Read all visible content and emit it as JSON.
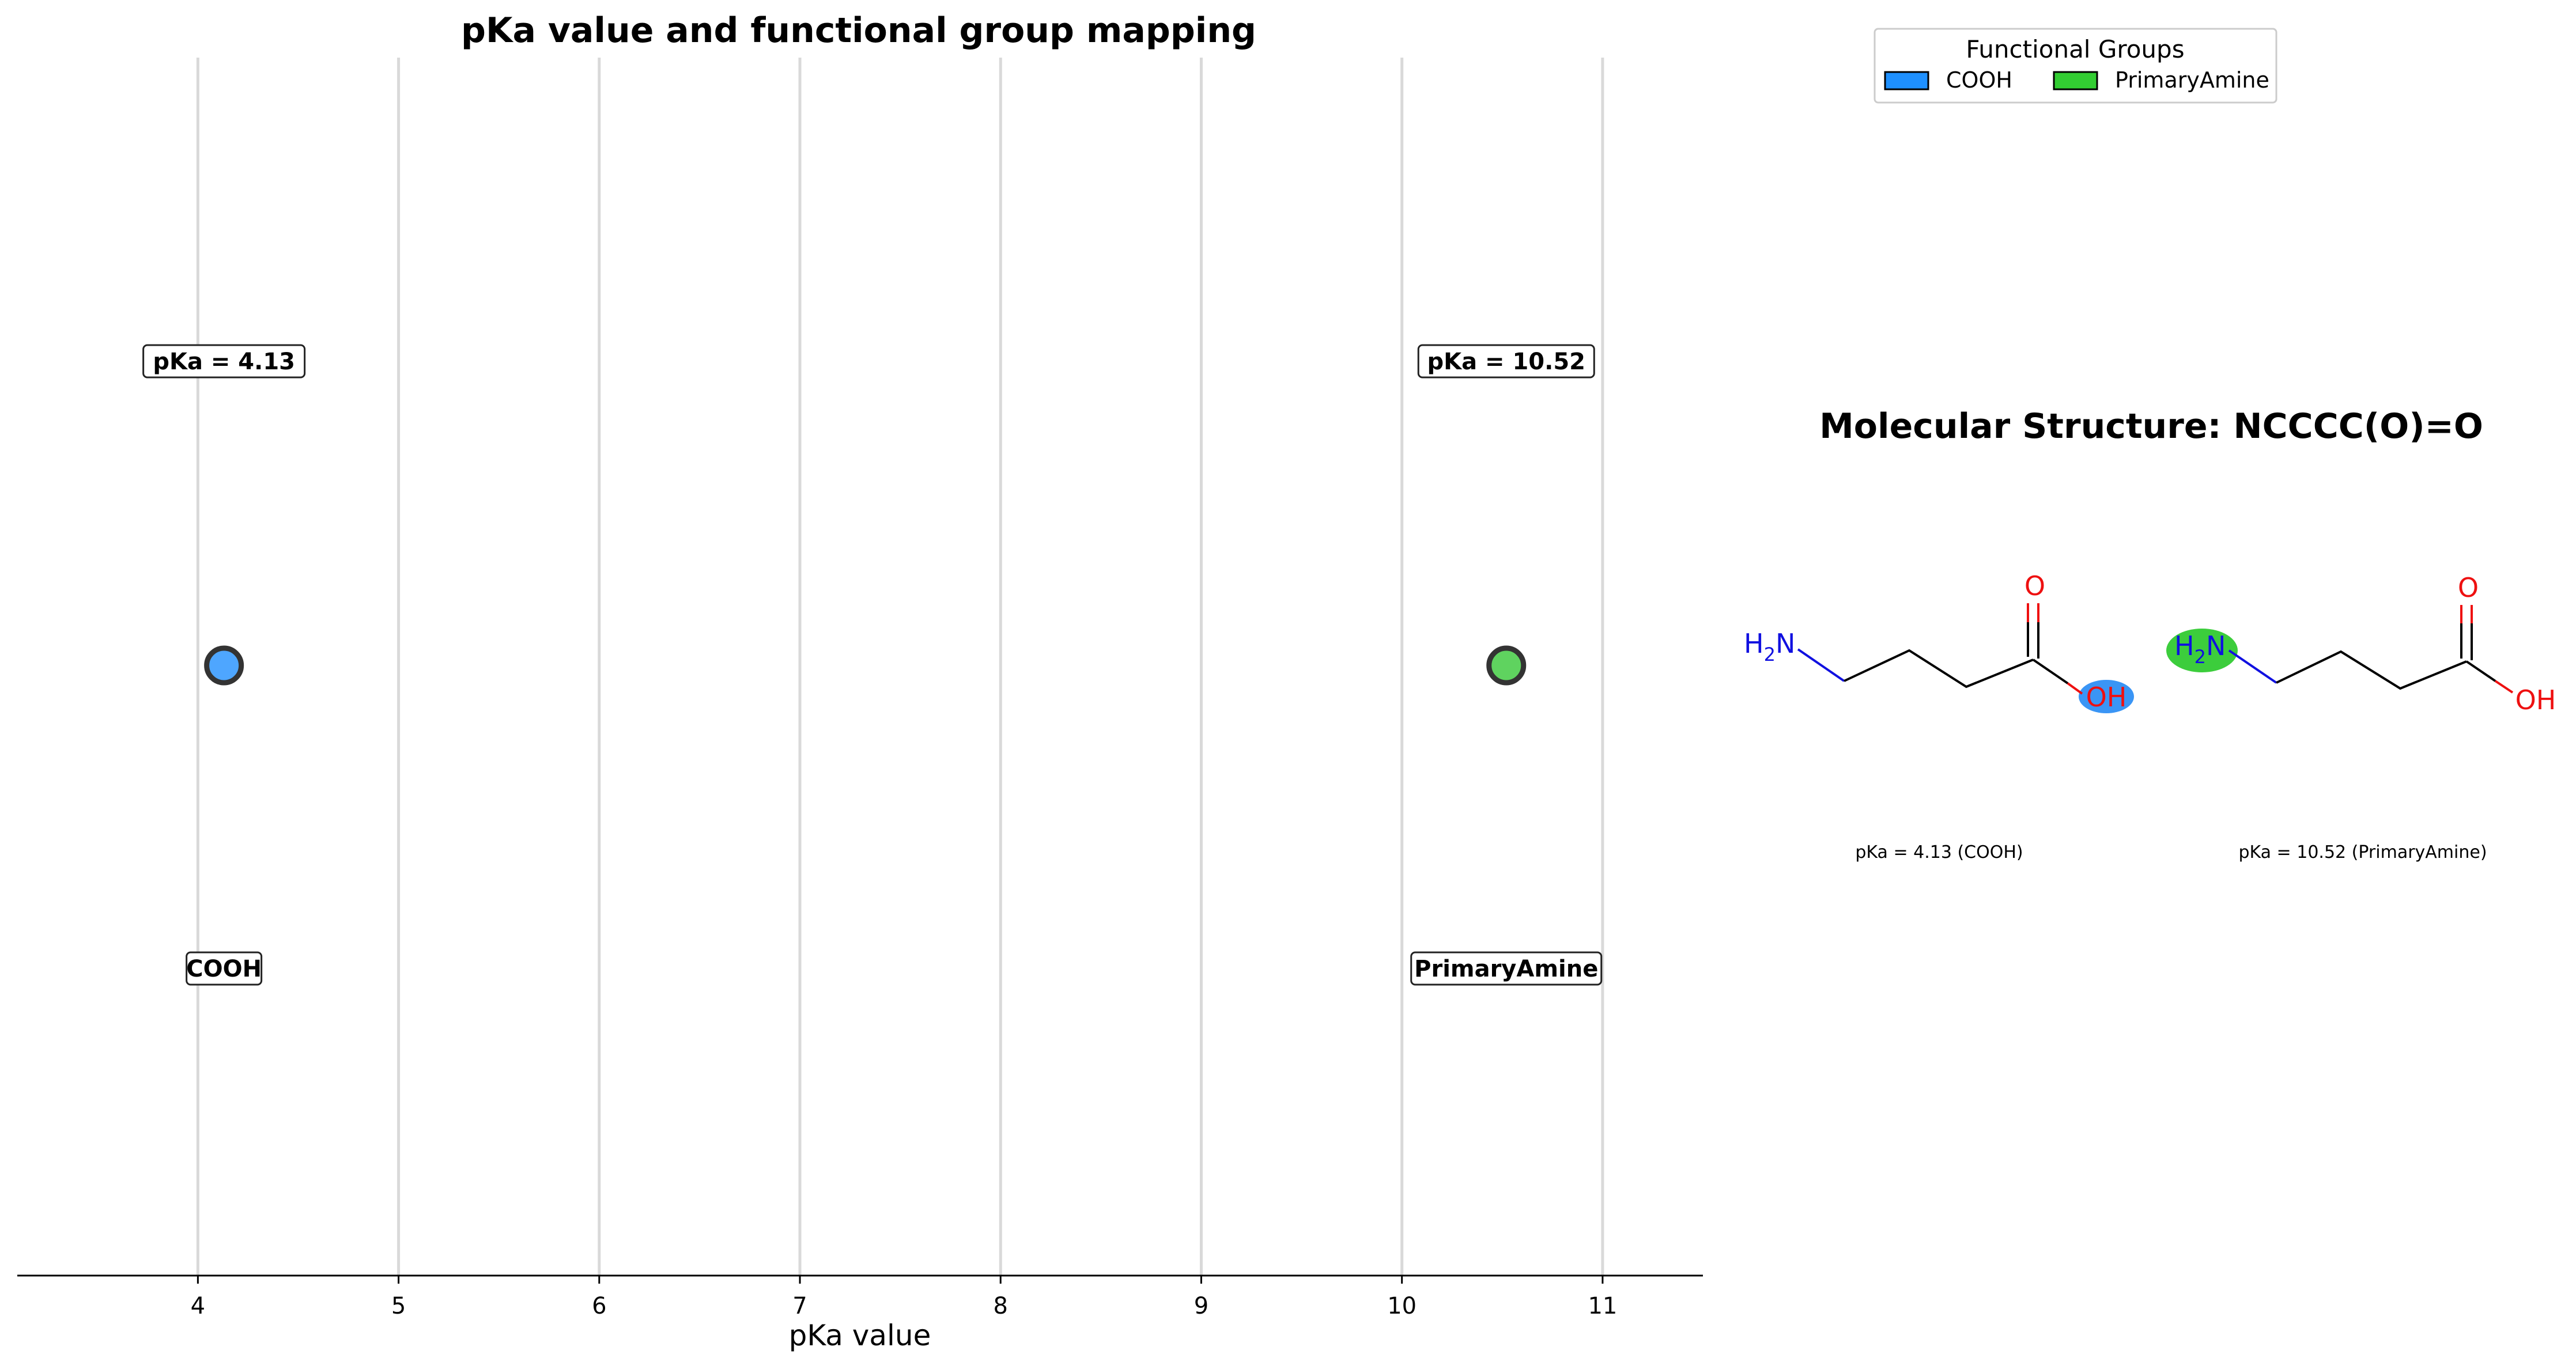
{
  "chart_data": {
    "type": "scatter",
    "title": "pKa value and functional group mapping",
    "xlabel": "pKa value",
    "ylabel": "",
    "xlim": [
      3.1,
      11.5
    ],
    "x_ticks": [
      4,
      5,
      6,
      7,
      8,
      9,
      10,
      11
    ],
    "grid": "vertical",
    "points": [
      {
        "group": "COOH",
        "pka": 4.13,
        "pka_label": "pKa = 4.13",
        "group_label": "COOH",
        "color": "#4ea6ff"
      },
      {
        "group": "PrimaryAmine",
        "pka": 10.52,
        "pka_label": "pKa = 10.52",
        "group_label": "PrimaryAmine",
        "color": "#5fd35f"
      }
    ]
  },
  "legend": {
    "title": "Functional Groups",
    "placement": "top-right",
    "items": [
      {
        "label": "COOH",
        "color": "#1e90ff"
      },
      {
        "label": "PrimaryAmine",
        "color": "#32cd32"
      }
    ]
  },
  "molecule": {
    "title": "Molecular Structure: NCCCC(O)=O",
    "atom_labels": {
      "amine": "H",
      "amine_sub": "2",
      "amine_n": "N",
      "carbonyl_o": "O",
      "hydroxyl": "OH"
    },
    "panels": [
      {
        "caption": "pKa = 4.13 (COOH)",
        "highlight": "hydroxyl",
        "highlight_color": "#3a95f5"
      },
      {
        "caption": "pKa = 10.52 (PrimaryAmine)",
        "highlight": "amine",
        "highlight_color": "#3ccd3c"
      }
    ],
    "colors": {
      "nitrogen": "#1010e0",
      "oxygen": "#ee1010",
      "bond": "#000000"
    }
  }
}
